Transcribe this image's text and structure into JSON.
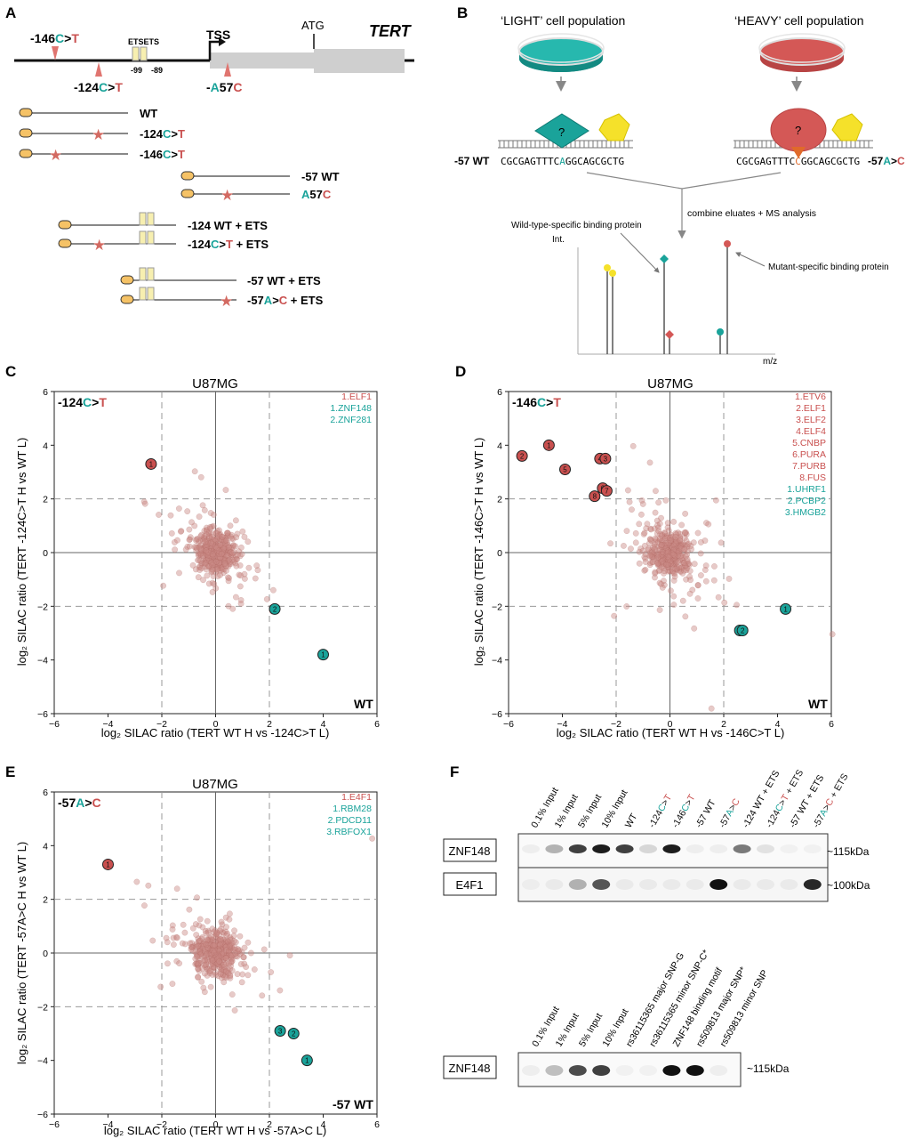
{
  "colors": {
    "red": "#c9504f",
    "teal": "#1aa39a",
    "ets": "#f7efb0",
    "oval": "#f5c266",
    "bg_point": "#c98a85",
    "cyan": "#3bb8b5",
    "yellow": "#f5e12a"
  },
  "panelA": {
    "letter": "A",
    "mut146": {
      "pre": "-146",
      "wt": "C",
      "sep": ">",
      "mt": "T"
    },
    "mut124": {
      "pre": "-124",
      "wt": "C",
      "sep": ">",
      "mt": "T"
    },
    "mut57": {
      "pre": "-",
      "wt": "A",
      "mid": "57",
      "mt": "C"
    },
    "ets_label": "ETSETS",
    "pos99": "-99",
    "pos89": "-89",
    "tss": "TSS",
    "atg": "ATG",
    "gene": "TERT",
    "probes": {
      "wt": "WT",
      "m124": {
        "pre": "-124",
        "wt": "C",
        "sep": ">",
        "mt": "T"
      },
      "m146": {
        "pre": "-146",
        "wt": "C",
        "sep": ">",
        "mt": "T"
      },
      "wt57": "-57 WT",
      "a57c": {
        "wt": "A",
        "mid": "57",
        "mt": "C"
      },
      "wt124ets": "-124 WT + ETS",
      "m124ets": {
        "pre": "-124",
        "wt": "C",
        "sep": ">",
        "mt": "T",
        "post": " + ETS"
      },
      "wt57ets": "-57 WT + ETS",
      "m57ets": {
        "pre": "-57",
        "wt": "A",
        "sep": ">",
        "mt": "C",
        "post": " + ETS"
      }
    }
  },
  "panelB": {
    "letter": "B",
    "light": "‘LIGHT’ cell population",
    "heavy": "‘HEAVY’ cell population",
    "q": "?",
    "wt_label": "-57 WT",
    "seq_left": {
      "pre": "CGCGAGTTTC",
      "base": "A",
      "post": "GGCAGCGCTG"
    },
    "seq_right": {
      "pre": "CGCGAGTTTC",
      "base": "C",
      "post": "GGCAGCGCTG"
    },
    "mut_label": {
      "pre": "-57",
      "wt": "A",
      "sep": ">",
      "mt": "C"
    },
    "combine": "combine eluates + MS analysis",
    "wt_specific": "Wild-type-specific binding protein",
    "mut_specific": "Mutant-specific binding protein",
    "int": "Int.",
    "mz": "m/z"
  },
  "scatter_labels": {
    "letterC": "C",
    "letterD": "D",
    "letterE": "E",
    "title": "U87MG",
    "corner_wt": "WT",
    "corner_57wt": "-57 WT",
    "mutC": {
      "pre": "-124",
      "wt": "C",
      "sep": ">",
      "mt": "T"
    },
    "mutD": {
      "pre": "-146",
      "wt": "C",
      "sep": ">",
      "mt": "T"
    },
    "mutE": {
      "pre": "-57",
      "wt": "A",
      "sep": ">",
      "mt": "C"
    },
    "ylabelC": "log₂ SILAC ratio (TERT -124C>T H vs WT L)",
    "xlabelC": "log₂ SILAC ratio (TERT WT H vs -124C>T L)",
    "ylabelD": "log₂ SILAC ratio (TERT -146C>T H vs WT L)",
    "xlabelD": "log₂ SILAC ratio (TERT WT H vs -146C>T L)",
    "ylabelE": "log₂ SILAC ratio (TERT -57A>C H vs WT L)",
    "xlabelE": "log₂ SILAC ratio (TERT WT H vs -57A>C L)"
  },
  "chart_data": [
    {
      "panel": "C",
      "type": "scatter",
      "title": "U87MG",
      "xlim": [
        -6,
        6
      ],
      "ylim": [
        -6,
        6
      ],
      "xticks": [
        "−6",
        "−4",
        "−2",
        "0",
        "2",
        "4",
        "6"
      ],
      "yticks": [
        "6",
        "4",
        "2",
        "0",
        "−2",
        "−4",
        "−6"
      ],
      "legend": [
        {
          "label": "1.ELF1",
          "group": "mutant"
        },
        {
          "label": "1.ZNF148",
          "group": "wildtype"
        },
        {
          "label": "2.ZNF281",
          "group": "wildtype"
        }
      ],
      "highlighted": [
        {
          "label": "1",
          "x": -2.4,
          "y": 3.3,
          "group": "mutant"
        },
        {
          "label": "1",
          "x": 4.0,
          "y": -3.8,
          "group": "wildtype"
        },
        {
          "label": "2",
          "x": 2.2,
          "y": -2.1,
          "group": "wildtype"
        }
      ]
    },
    {
      "panel": "D",
      "type": "scatter",
      "title": "U87MG",
      "xlim": [
        -6,
        6
      ],
      "ylim": [
        -6,
        6
      ],
      "xticks": [
        "−6",
        "−4",
        "−2",
        "0",
        "2",
        "4",
        "6"
      ],
      "yticks": [
        "6",
        "4",
        "2",
        "0",
        "−2",
        "−4",
        "−6"
      ],
      "legend": [
        {
          "label": "1.ETV6",
          "group": "mutant"
        },
        {
          "label": "2.ELF1",
          "group": "mutant"
        },
        {
          "label": "3.ELF2",
          "group": "mutant"
        },
        {
          "label": "4.ELF4",
          "group": "mutant"
        },
        {
          "label": "5.CNBP",
          "group": "mutant"
        },
        {
          "label": "6.PURA",
          "group": "mutant"
        },
        {
          "label": "7.PURB",
          "group": "mutant"
        },
        {
          "label": "8.FUS",
          "group": "mutant"
        },
        {
          "label": "1.UHRF1",
          "group": "wildtype"
        },
        {
          "label": "2.PCBP2",
          "group": "wildtype"
        },
        {
          "label": "3.HMGB2",
          "group": "wildtype"
        }
      ],
      "highlighted": [
        {
          "label": "2",
          "x": -5.5,
          "y": 3.6,
          "group": "mutant"
        },
        {
          "label": "1",
          "x": -4.5,
          "y": 4.0,
          "group": "mutant"
        },
        {
          "label": "5",
          "x": -3.9,
          "y": 3.1,
          "group": "mutant"
        },
        {
          "label": "4",
          "x": -2.6,
          "y": 3.5,
          "group": "mutant"
        },
        {
          "label": "3",
          "x": -2.4,
          "y": 3.5,
          "group": "mutant"
        },
        {
          "label": "6",
          "x": -2.5,
          "y": 2.4,
          "group": "mutant"
        },
        {
          "label": "7",
          "x": -2.35,
          "y": 2.3,
          "group": "mutant"
        },
        {
          "label": "8",
          "x": -2.8,
          "y": 2.1,
          "group": "mutant"
        },
        {
          "label": "1",
          "x": 4.3,
          "y": -2.1,
          "group": "wildtype"
        },
        {
          "label": "3",
          "x": 2.6,
          "y": -2.9,
          "group": "wildtype"
        },
        {
          "label": "2",
          "x": 2.7,
          "y": -2.9,
          "group": "wildtype"
        }
      ]
    },
    {
      "panel": "E",
      "type": "scatter",
      "title": "U87MG",
      "xlim": [
        -6,
        6
      ],
      "ylim": [
        -6,
        6
      ],
      "xticks": [
        "−6",
        "−4",
        "−2",
        "0",
        "2",
        "4",
        "6"
      ],
      "yticks": [
        "6",
        "4",
        "2",
        "0",
        "−2",
        "−4",
        "−6"
      ],
      "legend": [
        {
          "label": "1.E4F1",
          "group": "mutant"
        },
        {
          "label": "1.RBM28",
          "group": "wildtype"
        },
        {
          "label": "2.PDCD11",
          "group": "wildtype"
        },
        {
          "label": "3.RBFOX1",
          "group": "wildtype"
        }
      ],
      "highlighted": [
        {
          "label": "1",
          "x": -4.0,
          "y": 3.3,
          "group": "mutant"
        },
        {
          "label": "1",
          "x": 3.4,
          "y": -4.0,
          "group": "wildtype"
        },
        {
          "label": "2",
          "x": 2.9,
          "y": -3.0,
          "group": "wildtype"
        },
        {
          "label": "3",
          "x": 2.4,
          "y": -2.9,
          "group": "wildtype"
        }
      ]
    }
  ],
  "panelF": {
    "letter": "F",
    "lanes_top": [
      "0.1% Input",
      "1% Input",
      "5% Input",
      "10% Input",
      "WT",
      "-124C>T",
      "-146C>T",
      "-57 WT",
      "-57A>C",
      "-124 WT + ETS",
      "-124C>T + ETS",
      "-57 WT + ETS",
      "-57A>C + ETS"
    ],
    "lanes_bottom": [
      "0.1% Input",
      "1% Input",
      "5% Input",
      "10% Input",
      "rs36115365 major SNP-G",
      "rs36115365 minor SNP-C*",
      "ZNF148 binding motif",
      "rs509813 major SNP*",
      "rs509813 minor SNP"
    ],
    "blot1": "ZNF148",
    "blot2": "E4F1",
    "blot3": "ZNF148",
    "mw1": "~115kDa",
    "mw2": "~100kDa",
    "mw3": "~115kDa",
    "band_intensity_znf148_top": [
      0.05,
      0.3,
      0.8,
      0.95,
      0.8,
      0.15,
      0.95,
      0.05,
      0.05,
      0.55,
      0.1,
      0.03,
      0.03
    ],
    "band_intensity_e4f1": [
      0.03,
      0.05,
      0.3,
      0.7,
      0.05,
      0.05,
      0.05,
      0.05,
      1.0,
      0.05,
      0.05,
      0.05,
      0.9
    ],
    "band_intensity_znf148_bottom": [
      0.05,
      0.25,
      0.75,
      0.8,
      0.03,
      0.03,
      1.0,
      1.0,
      0.05
    ]
  }
}
